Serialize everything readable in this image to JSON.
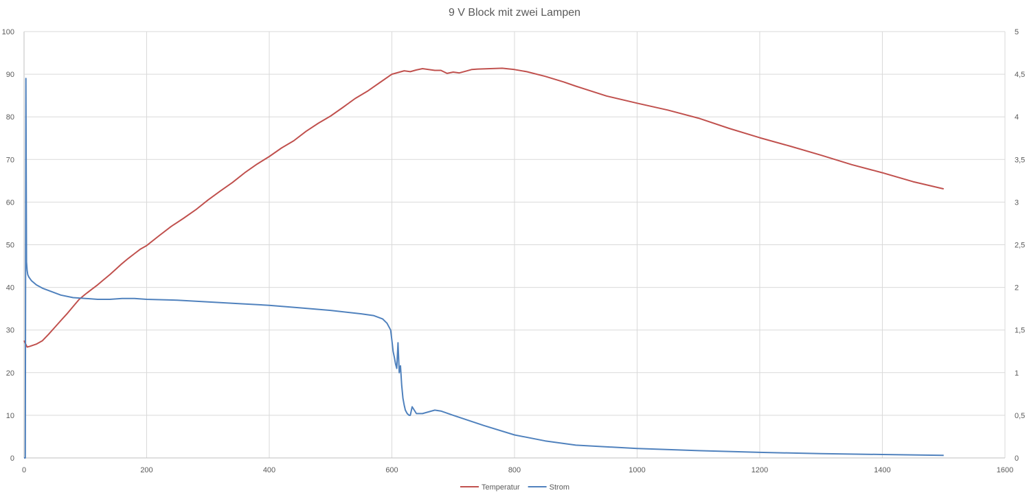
{
  "chart_data": {
    "type": "line",
    "title": "9 V Block mit zwei Lampen",
    "xlim": [
      0,
      1600
    ],
    "x_ticks": [
      "0",
      "200",
      "400",
      "600",
      "800",
      "1000",
      "1200",
      "1400",
      "1600"
    ],
    "ylim": [
      0,
      100
    ],
    "y_ticks": [
      "0",
      "10",
      "20",
      "30",
      "40",
      "50",
      "60",
      "70",
      "80",
      "90",
      "100"
    ],
    "y2lim": [
      0,
      5
    ],
    "y2_ticks": [
      "0",
      "0,5",
      "1",
      "1,5",
      "2",
      "2,5",
      "3",
      "3,5",
      "4",
      "4,5",
      "5"
    ],
    "grid": true,
    "legend_position": "bottom",
    "series": [
      {
        "name": "Temperatur",
        "axis": "left",
        "color": "#c0504d",
        "x": [
          0,
          5,
          10,
          20,
          30,
          40,
          50,
          60,
          70,
          80,
          90,
          100,
          110,
          120,
          130,
          140,
          150,
          160,
          170,
          180,
          190,
          200,
          220,
          240,
          260,
          280,
          300,
          320,
          340,
          360,
          380,
          400,
          420,
          440,
          460,
          480,
          500,
          520,
          540,
          560,
          580,
          600,
          620,
          630,
          640,
          650,
          660,
          670,
          680,
          690,
          700,
          710,
          720,
          730,
          740,
          760,
          780,
          800,
          820,
          850,
          880,
          900,
          950,
          1000,
          1050,
          1100,
          1150,
          1200,
          1250,
          1300,
          1350,
          1400,
          1450,
          1500
        ],
        "y": [
          27.5,
          26.0,
          26.2,
          26.7,
          27.5,
          29.0,
          30.6,
          32.2,
          33.8,
          35.5,
          37.2,
          38.4,
          39.5,
          40.6,
          41.8,
          43.0,
          44.3,
          45.6,
          46.8,
          47.9,
          49.0,
          49.8,
          52.1,
          54.3,
          56.2,
          58.2,
          60.5,
          62.6,
          64.6,
          66.9,
          68.9,
          70.7,
          72.7,
          74.4,
          76.6,
          78.5,
          80.2,
          82.2,
          84.3,
          86.0,
          88.0,
          90.0,
          90.8,
          90.6,
          91.0,
          91.3,
          91.1,
          90.9,
          90.9,
          90.2,
          90.5,
          90.3,
          90.7,
          91.1,
          91.2,
          91.3,
          91.4,
          91.1,
          90.6,
          89.5,
          88.2,
          87.2,
          84.9,
          83.2,
          81.6,
          79.7,
          77.3,
          75.1,
          73.1,
          71.0,
          68.8,
          66.9,
          64.8,
          63.1
        ]
      },
      {
        "name": "Strom",
        "axis": "right",
        "color": "#4f81bd",
        "x": [
          0,
          1,
          2,
          3,
          4,
          5,
          6,
          8,
          12,
          20,
          30,
          45,
          60,
          80,
          100,
          120,
          140,
          160,
          180,
          200,
          250,
          300,
          350,
          400,
          450,
          500,
          550,
          570,
          585,
          592,
          598,
          600,
          602,
          604,
          606,
          608,
          610,
          612,
          614,
          616,
          618,
          620,
          622,
          625,
          628,
          630,
          633,
          640,
          650,
          660,
          670,
          680,
          700,
          750,
          800,
          850,
          900,
          1000,
          1100,
          1200,
          1300,
          1400,
          1500
        ],
        "y": [
          0.0,
          0.0,
          0.0,
          4.45,
          2.3,
          2.2,
          2.15,
          2.12,
          2.08,
          2.03,
          1.99,
          1.95,
          1.91,
          1.88,
          1.87,
          1.86,
          1.86,
          1.87,
          1.87,
          1.86,
          1.85,
          1.83,
          1.81,
          1.79,
          1.76,
          1.73,
          1.69,
          1.67,
          1.63,
          1.58,
          1.5,
          1.38,
          1.25,
          1.18,
          1.1,
          1.05,
          1.35,
          1.0,
          1.08,
          0.85,
          0.7,
          0.62,
          0.56,
          0.52,
          0.5,
          0.5,
          0.6,
          0.52,
          0.52,
          0.54,
          0.56,
          0.55,
          0.5,
          0.38,
          0.27,
          0.2,
          0.15,
          0.11,
          0.085,
          0.065,
          0.05,
          0.04,
          0.03
        ]
      }
    ]
  }
}
